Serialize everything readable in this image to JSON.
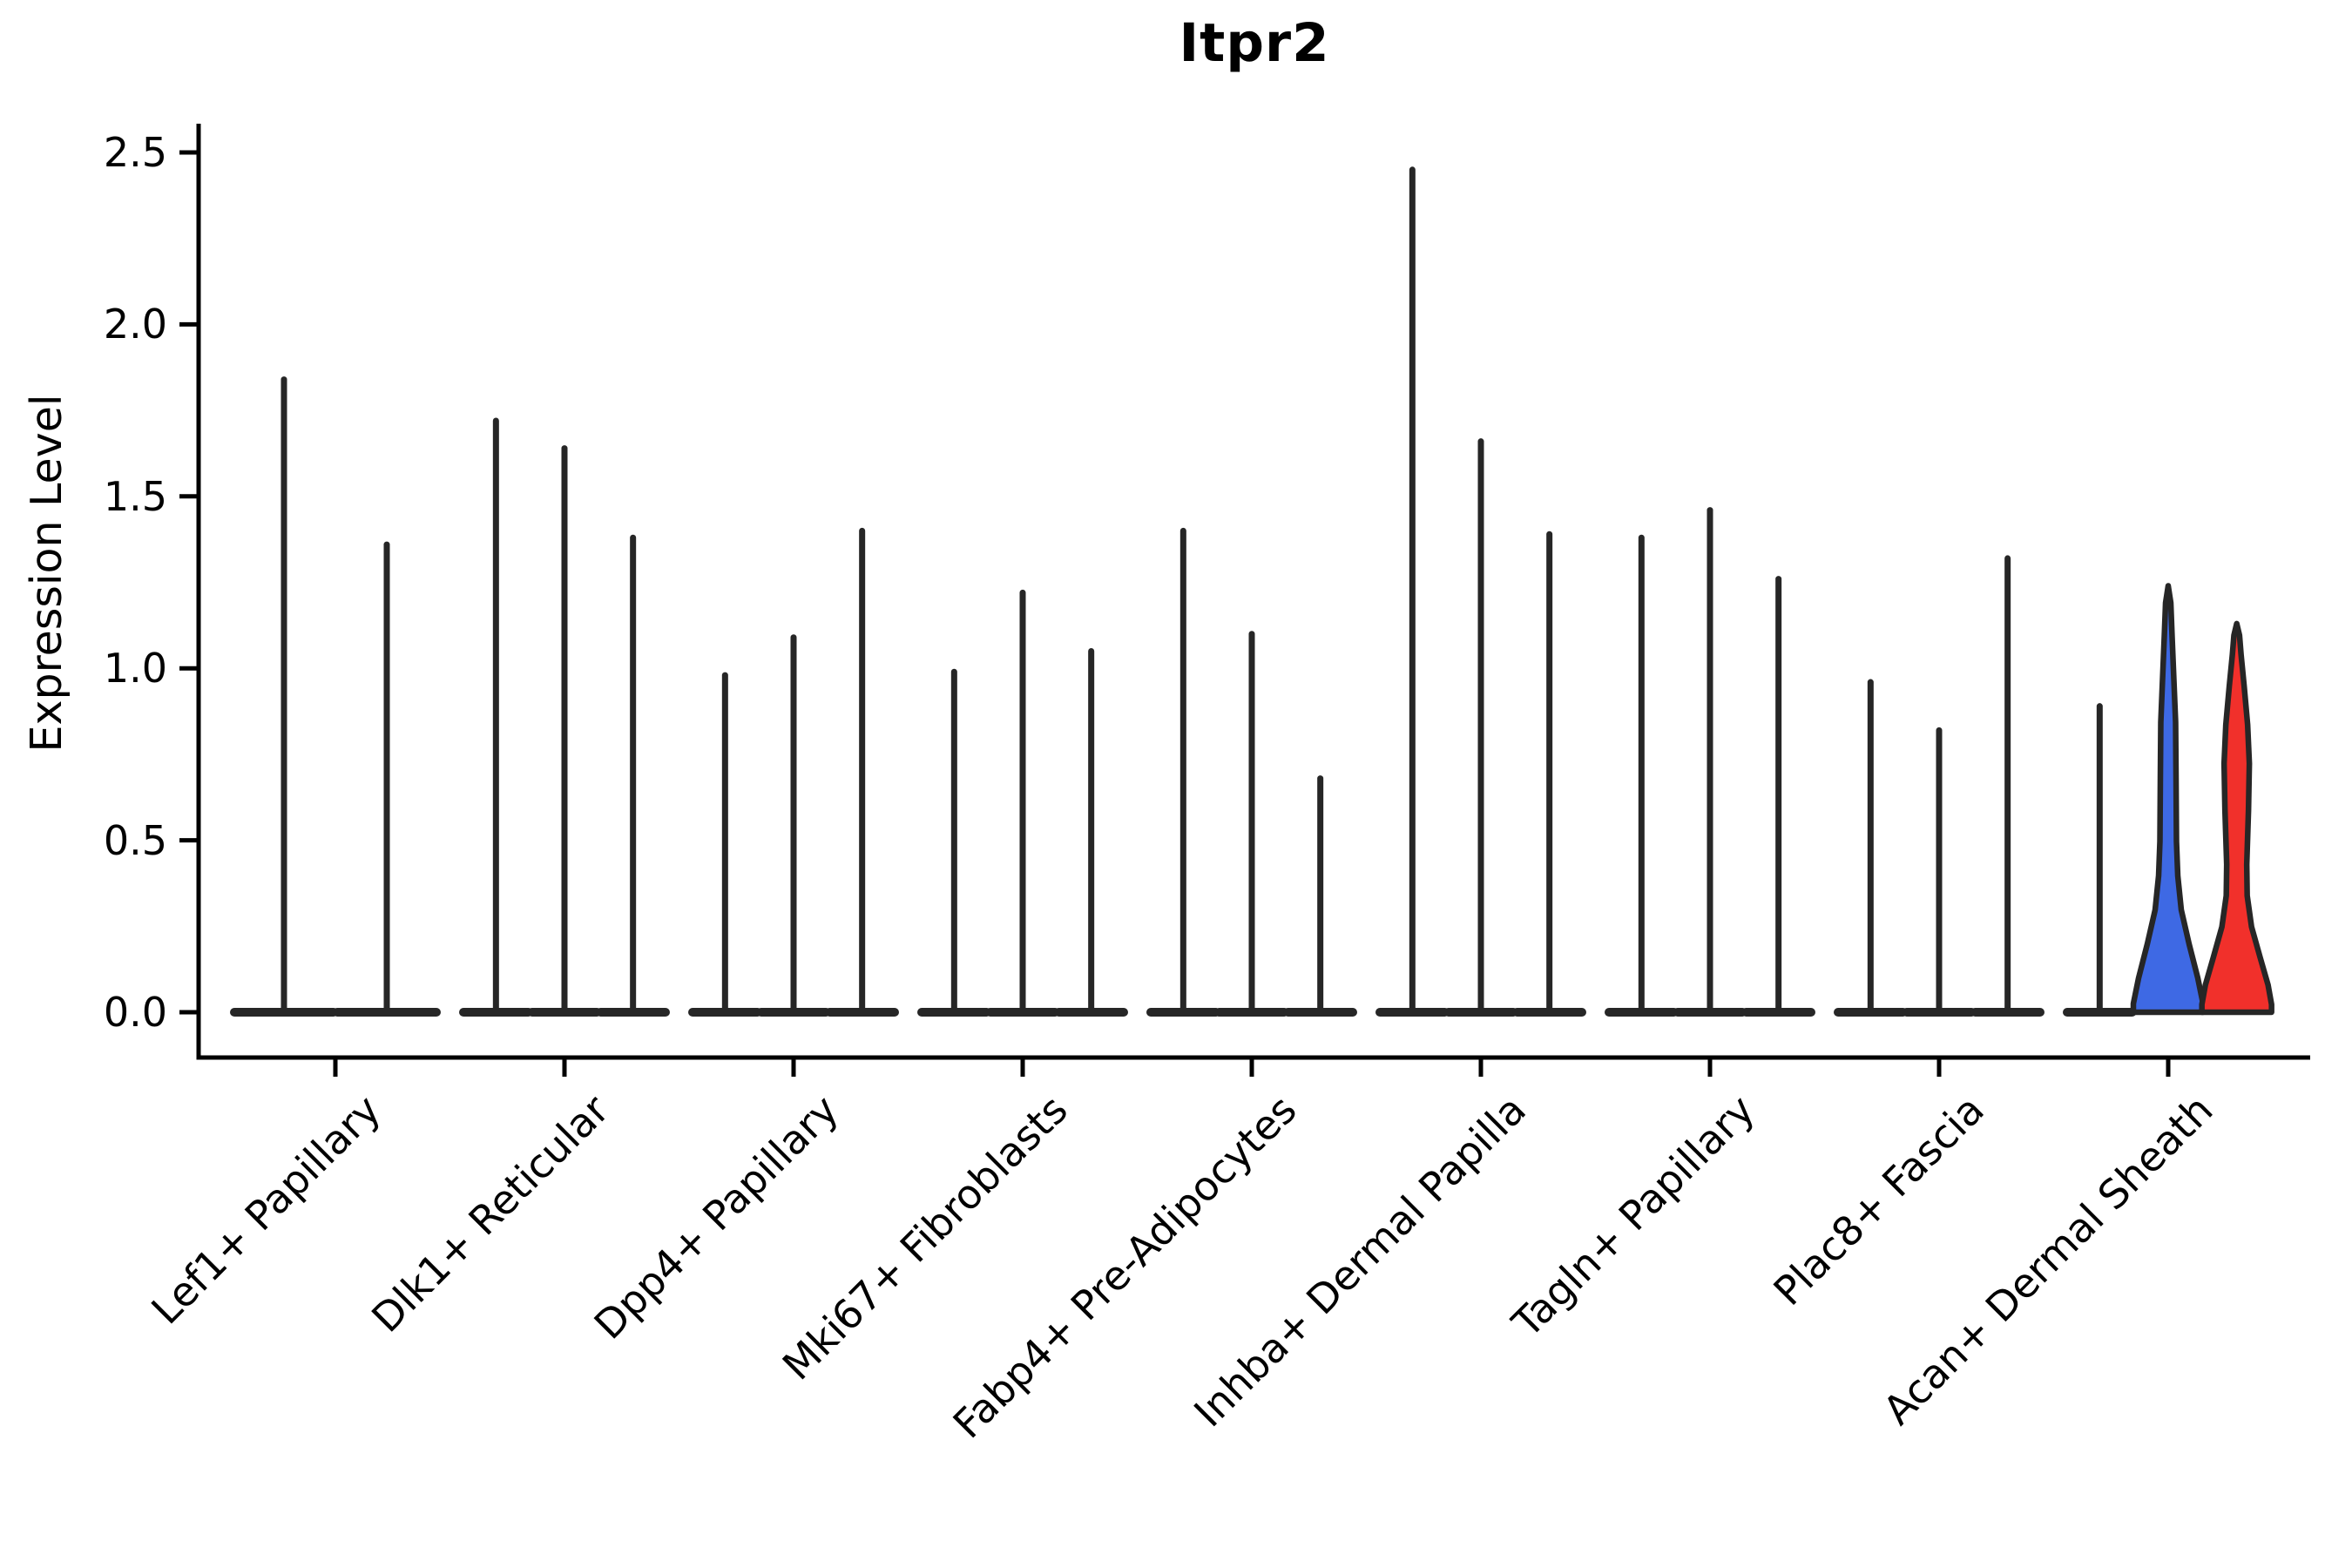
{
  "chart_data": {
    "type": "violin",
    "title": "Itpr2",
    "ylabel": "Expression Level",
    "xlabel": "",
    "ylim": [
      0.0,
      2.5
    ],
    "ytick_values": [
      0.0,
      0.5,
      1.0,
      1.5,
      2.0,
      2.5
    ],
    "ytick_labels": [
      "0.0",
      "0.5",
      "1.0",
      "1.5",
      "2.0",
      "2.5"
    ],
    "grid": false,
    "legend_position": "none",
    "xticklabel_rotation": 45,
    "axis_color": "#000000",
    "violin_outline_color": "#262626",
    "categories": [
      "Lef1+ Papillary",
      "Dlk1+ Reticular",
      "Dpp4+ Papillary",
      "Mki67+ Fibroblasts",
      "Fabp4+ Pre-Adipocytes",
      "Inhba+ Dermal Papilla",
      "Tagln+ Papillary",
      "Plac8+ Fascia",
      "Acan+ Dermal Sheath"
    ],
    "groups": [
      {
        "category": "Lef1+ Papillary",
        "violins": [
          {
            "max": 1.85,
            "style": "spike",
            "fill": "none"
          },
          {
            "max": 1.37,
            "style": "spike",
            "fill": "none"
          }
        ]
      },
      {
        "category": "Dlk1+ Reticular",
        "violins": [
          {
            "max": 1.73,
            "style": "spike",
            "fill": "none"
          },
          {
            "max": 1.65,
            "style": "spike",
            "fill": "none"
          },
          {
            "max": 1.39,
            "style": "spike",
            "fill": "none"
          }
        ]
      },
      {
        "category": "Dpp4+ Papillary",
        "violins": [
          {
            "max": 0.99,
            "style": "spike",
            "fill": "none"
          },
          {
            "max": 1.1,
            "style": "spike",
            "fill": "none"
          },
          {
            "max": 1.41,
            "style": "spike",
            "fill": "none"
          }
        ]
      },
      {
        "category": "Mki67+ Fibroblasts",
        "violins": [
          {
            "max": 1.0,
            "style": "spike",
            "fill": "none"
          },
          {
            "max": 1.23,
            "style": "spike",
            "fill": "none"
          },
          {
            "max": 1.06,
            "style": "spike",
            "fill": "none"
          }
        ]
      },
      {
        "category": "Fabp4+ Pre-Adipocytes",
        "violins": [
          {
            "max": 1.41,
            "style": "spike",
            "fill": "none"
          },
          {
            "max": 1.11,
            "style": "spike",
            "fill": "none"
          },
          {
            "max": 0.69,
            "style": "spike",
            "fill": "none"
          }
        ]
      },
      {
        "category": "Inhba+ Dermal Papilla",
        "violins": [
          {
            "max": 2.46,
            "style": "spike",
            "fill": "none"
          },
          {
            "max": 1.67,
            "style": "spike",
            "fill": "none"
          },
          {
            "max": 1.4,
            "style": "spike",
            "fill": "none"
          }
        ]
      },
      {
        "category": "Tagln+ Papillary",
        "violins": [
          {
            "max": 1.39,
            "style": "spike",
            "fill": "none"
          },
          {
            "max": 1.47,
            "style": "spike",
            "fill": "none"
          },
          {
            "max": 1.27,
            "style": "spike",
            "fill": "none"
          }
        ]
      },
      {
        "category": "Plac8+ Fascia",
        "violins": [
          {
            "max": 0.97,
            "style": "spike",
            "fill": "none"
          },
          {
            "max": 0.83,
            "style": "spike",
            "fill": "none"
          },
          {
            "max": 1.33,
            "style": "spike",
            "fill": "none"
          }
        ]
      },
      {
        "category": "Acan+ Dermal Sheath",
        "violins": [
          {
            "max": 0.9,
            "style": "spike",
            "fill": "none"
          },
          {
            "max": 1.24,
            "style": "violin",
            "fill": "#3E69E4"
          },
          {
            "max": 1.13,
            "style": "violin",
            "fill": "#F1302B"
          }
        ]
      }
    ]
  }
}
